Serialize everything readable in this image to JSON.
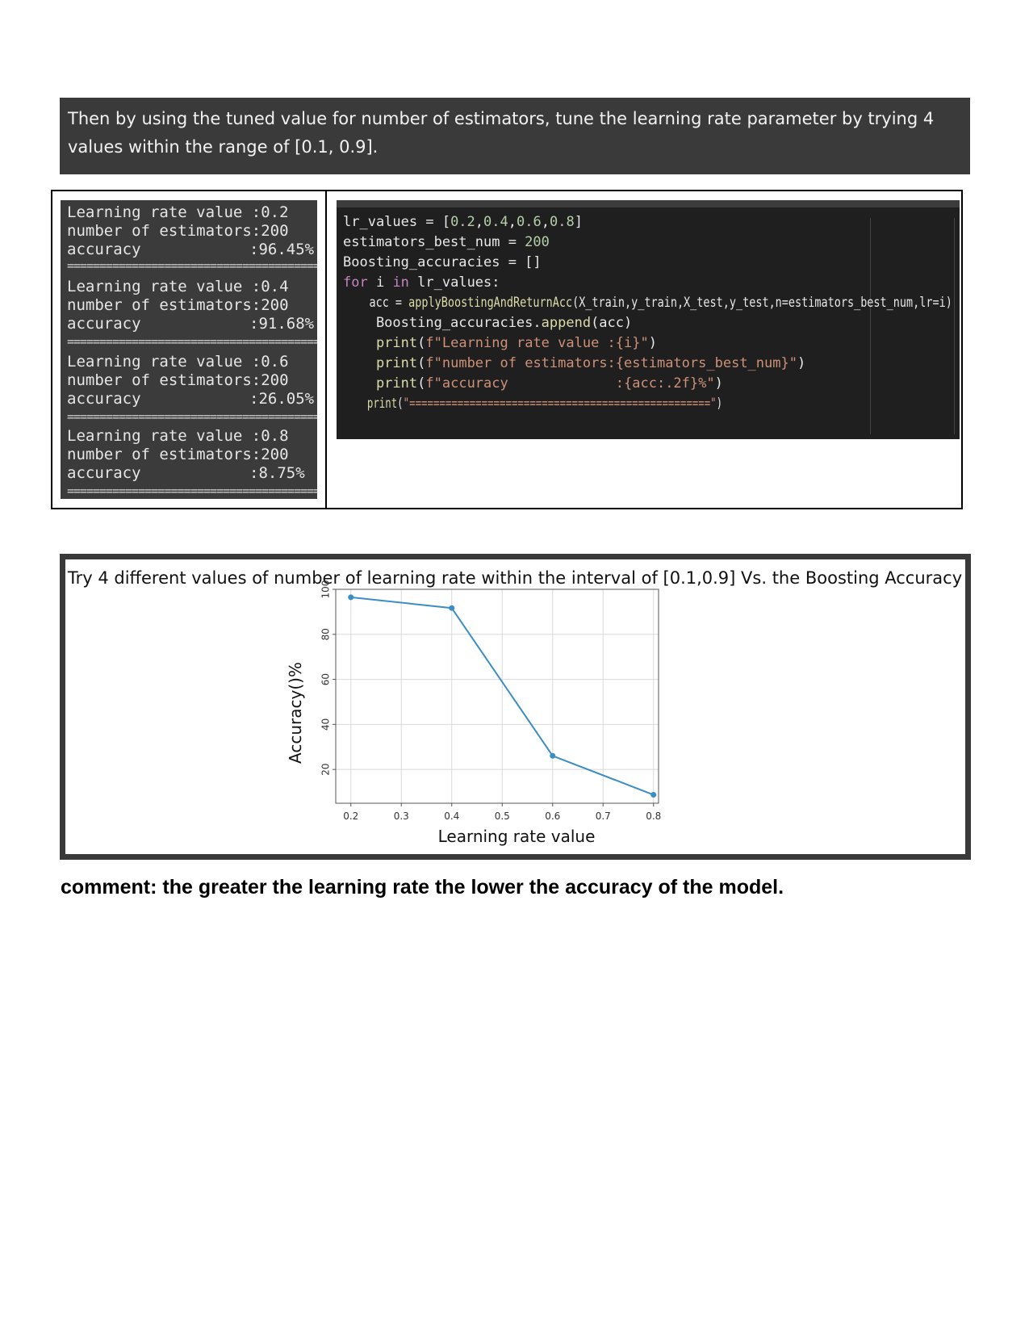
{
  "banner": {
    "text": "Then by using the tuned value for number of estimators, tune the learning rate parameter by trying 4 values within the range of [0.1, 0.9]."
  },
  "output": {
    "blocks": [
      {
        "lr_line": "Learning rate value :0.2",
        "est_line": "number of estimators:200",
        "acc_label": "accuracy",
        "acc_value": ":96.45%"
      },
      {
        "lr_line": "Learning rate value :0.4",
        "est_line": "number of estimators:200",
        "acc_label": "accuracy",
        "acc_value": ":91.68%"
      },
      {
        "lr_line": "Learning rate value :0.6",
        "est_line": "number of estimators:200",
        "acc_label": "accuracy",
        "acc_value": ":26.05%"
      },
      {
        "lr_line": "Learning rate value :0.8",
        "est_line": "number of estimators:200",
        "acc_label": "accuracy",
        "acc_value": ":8.75%"
      }
    ],
    "separator": "=================================================="
  },
  "code": {
    "lines": [
      "lr_values = [0.2,0.4,0.6,0.8]",
      "estimators_best_num = 200",
      "Boosting_accuracies = []",
      "for i in lr_values:",
      "    acc = applyBoostingAndReturnAcc(X_train,y_train,X_test,y_test,n=estimators_best_num,lr=i)",
      "    Boosting_accuracies.append(acc)",
      "    print(f\"Learning rate value :{i}\")",
      "    print(f\"number of estimators:{estimators_best_num}\")",
      "    print(f\"accuracy             :{acc:.2f}%\")",
      "    print(\"==================================================\")"
    ]
  },
  "chart_data": {
    "type": "line",
    "title": "Try 4 different values of number of learning rate within the interval of [0.1,0.9] Vs. the Boosting Accuracy",
    "xlabel": "Learning rate value",
    "ylabel": "Accuracy()%",
    "x": [
      0.2,
      0.4,
      0.6,
      0.8
    ],
    "series": [
      {
        "values": [
          96.45,
          91.68,
          26.05,
          8.75
        ],
        "color": "#3b8dc6"
      }
    ],
    "xticks": [
      "0.2",
      "0.3",
      "0.4",
      "0.5",
      "0.6",
      "0.7",
      "0.8"
    ],
    "yticks": [
      "20",
      "40",
      "60",
      "80",
      "100"
    ],
    "xlim": [
      0.17,
      0.81
    ],
    "ylim": [
      5,
      100
    ],
    "grid": true
  },
  "comment": {
    "text": "comment: the greater the learning rate the lower the accuracy of the model."
  }
}
